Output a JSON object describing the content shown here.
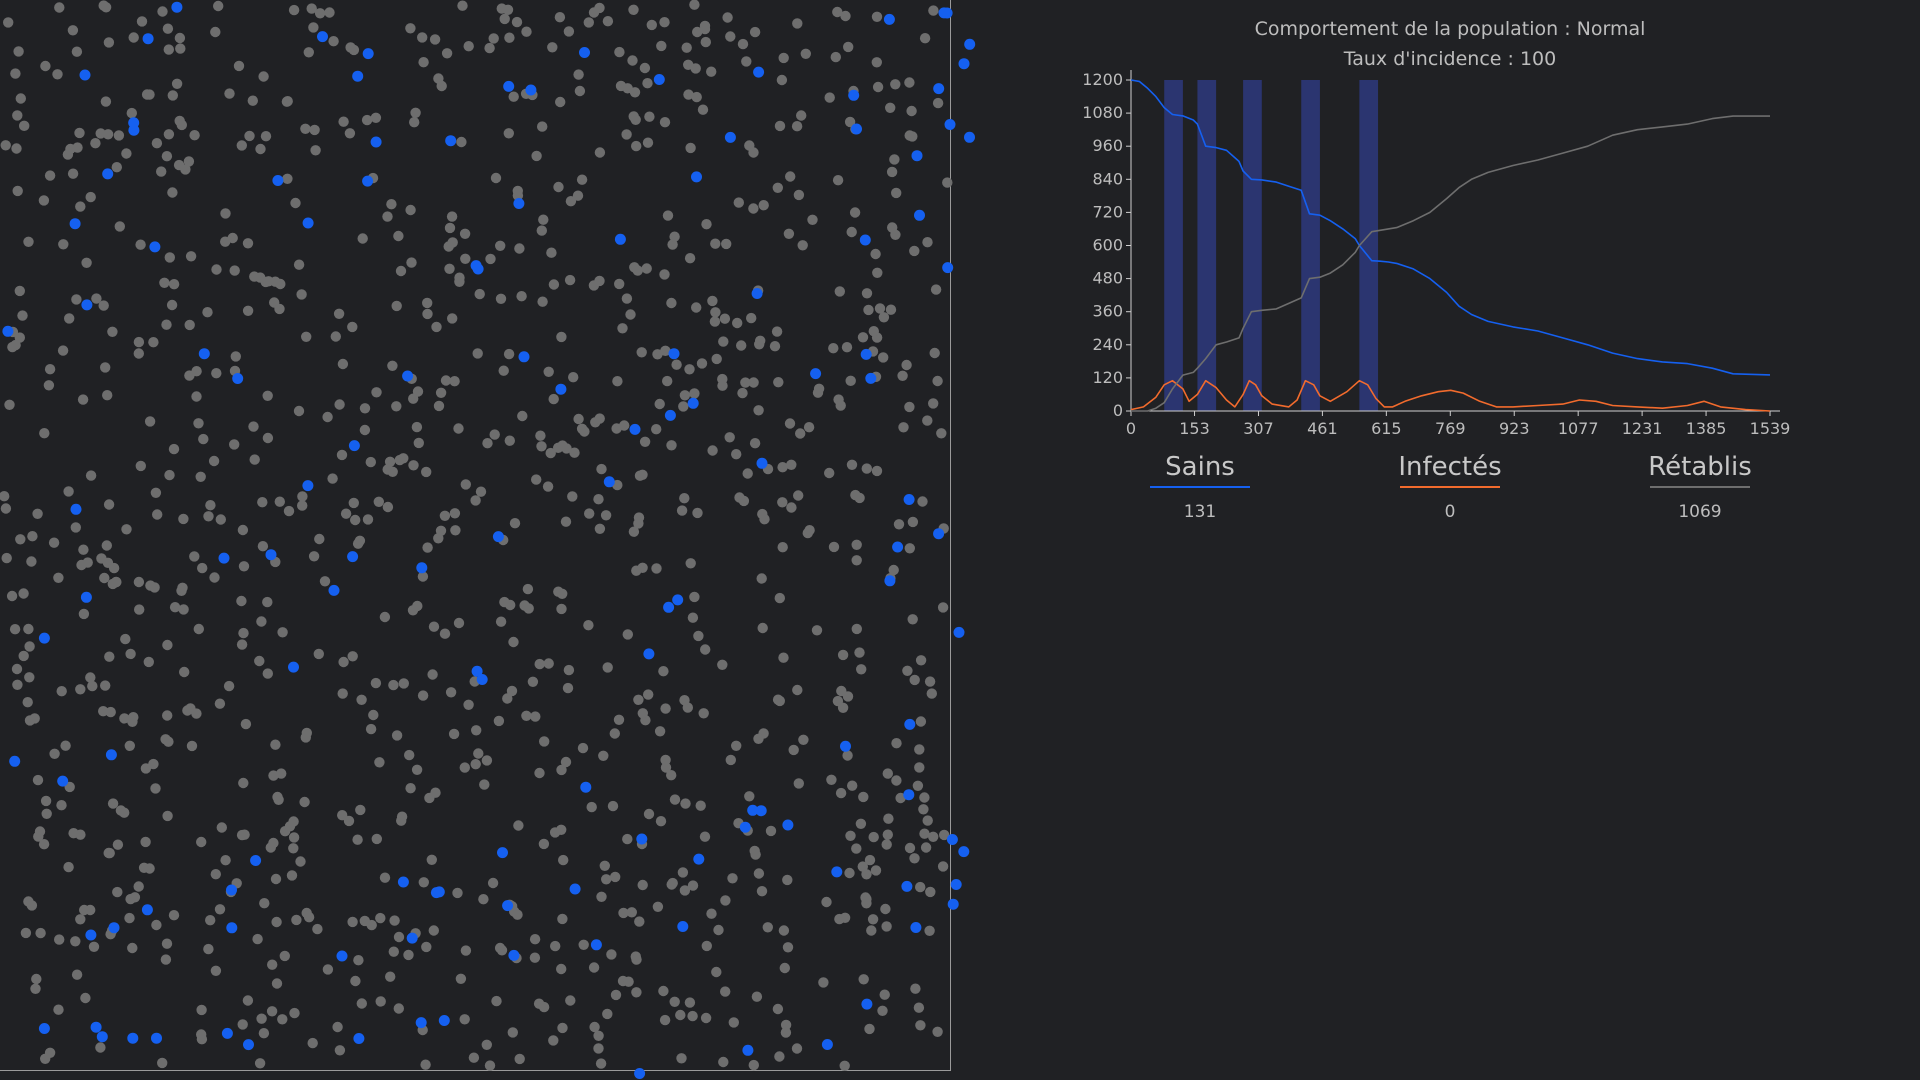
{
  "header": {
    "behavior": "Comportement de la population : Normal",
    "incidence": "Taux d'incidence : 100"
  },
  "colors": {
    "background": "#202124",
    "healthy": "#1560f0",
    "infected": "#f26b2d",
    "recovered": "#6e6e6e",
    "lockdown_band": "#2b3570"
  },
  "stats": {
    "healthy": {
      "label": "Sains",
      "value": "131"
    },
    "infected": {
      "label": "Infectés",
      "value": "0"
    },
    "recovered": {
      "label": "Rétablis",
      "value": "1069"
    }
  },
  "chart_data": {
    "type": "line",
    "xlim": [
      0,
      1539
    ],
    "ylim": [
      0,
      1200
    ],
    "x_ticks": [
      "0",
      "153",
      "307",
      "461",
      "615",
      "769",
      "923",
      "1077",
      "1231",
      "1385",
      "1539"
    ],
    "y_ticks": [
      "0",
      "120",
      "240",
      "360",
      "480",
      "600",
      "720",
      "840",
      "960",
      "1080",
      "1200"
    ],
    "lockdown_periods": [
      [
        80,
        125
      ],
      [
        160,
        205
      ],
      [
        270,
        315
      ],
      [
        410,
        455
      ],
      [
        550,
        595
      ]
    ],
    "series": [
      {
        "name": "Sains",
        "color": "#1560f0",
        "x": [
          0,
          20,
          40,
          60,
          80,
          100,
          125,
          150,
          160,
          180,
          205,
          230,
          260,
          270,
          290,
          315,
          350,
          380,
          410,
          430,
          455,
          480,
          510,
          540,
          550,
          580,
          600,
          620,
          640,
          680,
          720,
          760,
          790,
          820,
          860,
          920,
          980,
          1040,
          1100,
          1160,
          1220,
          1280,
          1340,
          1400,
          1450,
          1539
        ],
        "values": [
          1200,
          1195,
          1170,
          1140,
          1100,
          1075,
          1070,
          1055,
          1040,
          960,
          955,
          945,
          905,
          870,
          840,
          838,
          830,
          815,
          800,
          715,
          710,
          690,
          660,
          625,
          600,
          545,
          543,
          540,
          535,
          515,
          480,
          430,
          380,
          350,
          325,
          305,
          290,
          265,
          240,
          210,
          190,
          178,
          172,
          155,
          135,
          131
        ]
      },
      {
        "name": "Infectés",
        "color": "#f26b2d",
        "x": [
          0,
          30,
          60,
          80,
          100,
          125,
          140,
          160,
          180,
          205,
          230,
          250,
          270,
          285,
          300,
          315,
          340,
          380,
          400,
          420,
          440,
          455,
          480,
          520,
          550,
          570,
          590,
          610,
          630,
          660,
          700,
          740,
          770,
          800,
          840,
          880,
          920,
          980,
          1040,
          1080,
          1120,
          1160,
          1220,
          1280,
          1340,
          1380,
          1420,
          1480,
          1539
        ],
        "values": [
          5,
          15,
          50,
          95,
          110,
          80,
          35,
          60,
          110,
          85,
          40,
          15,
          60,
          110,
          95,
          55,
          25,
          15,
          40,
          110,
          95,
          55,
          35,
          70,
          110,
          95,
          45,
          15,
          15,
          35,
          55,
          70,
          75,
          65,
          35,
          15,
          15,
          20,
          25,
          40,
          35,
          20,
          15,
          10,
          20,
          35,
          15,
          5,
          0
        ]
      },
      {
        "name": "Rétablis",
        "color": "#6e6e6e",
        "x": [
          0,
          40,
          60,
          80,
          100,
          125,
          150,
          160,
          180,
          205,
          230,
          260,
          270,
          290,
          315,
          350,
          380,
          410,
          430,
          455,
          480,
          510,
          540,
          550,
          580,
          600,
          620,
          640,
          680,
          720,
          760,
          790,
          820,
          860,
          920,
          980,
          1040,
          1100,
          1160,
          1220,
          1280,
          1340,
          1400,
          1450,
          1539
        ],
        "values": [
          0,
          0,
          10,
          30,
          80,
          130,
          140,
          155,
          190,
          240,
          250,
          265,
          300,
          360,
          365,
          370,
          390,
          410,
          480,
          485,
          500,
          530,
          575,
          600,
          650,
          655,
          660,
          665,
          690,
          720,
          770,
          810,
          840,
          865,
          890,
          910,
          935,
          960,
          1000,
          1020,
          1030,
          1040,
          1060,
          1069,
          1069
        ]
      }
    ]
  }
}
